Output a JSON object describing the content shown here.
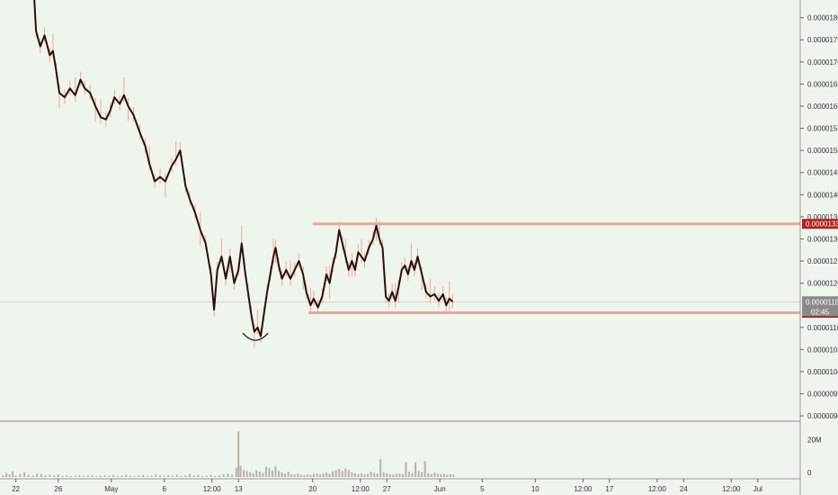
{
  "colors": {
    "background": "#eef5ec",
    "price_line": "#2b0f0f",
    "wick": "#e9a9a0",
    "level_line": "#e4a8a0",
    "level_tag": "#b0221f",
    "current_tag": "#8a8a8a",
    "volume_bar": "#b9b0aa",
    "axis_text": "#333333"
  },
  "chart_data": {
    "type": "line",
    "y_axis": {
      "ticks": [
        "0.00001800",
        "0.00001750",
        "0.00001700",
        "0.00001650",
        "0.00001600",
        "0.00001550",
        "0.00001500",
        "0.00001450",
        "0.00001400",
        "0.00001350",
        "0.00001300",
        "0.00001250",
        "0.00001200",
        "0.00001100",
        "0.00001050",
        "0.00001000",
        "0.00000950",
        "0.00000900"
      ],
      "range": [
        8.9e-06,
        1.84e-05
      ]
    },
    "x_axis": {
      "ticks": [
        {
          "label": "22",
          "day": 0
        },
        {
          "label": "26",
          "day": 4
        },
        {
          "label": "May",
          "day": 9
        },
        {
          "label": "6",
          "day": 14
        },
        {
          "label": "12:00",
          "day": 18.5
        },
        {
          "label": "13",
          "day": 21
        },
        {
          "label": "20",
          "day": 28
        },
        {
          "label": "12:00",
          "day": 32.5
        },
        {
          "label": "27",
          "day": 35
        },
        {
          "label": "Jun",
          "day": 40
        },
        {
          "label": "5",
          "day": 44
        },
        {
          "label": "10",
          "day": 49
        },
        {
          "label": "12:00",
          "day": 53.5
        },
        {
          "label": "17",
          "day": 56
        },
        {
          "label": "12:00",
          "day": 60.5
        },
        {
          "label": "24",
          "day": 63
        },
        {
          "label": "12:00",
          "day": 67.5
        },
        {
          "label": "Jul",
          "day": 70
        }
      ],
      "range": [
        -1.5,
        74
      ]
    },
    "series": [
      {
        "points": [
          [
            1.6,
            1.9e-05
          ],
          [
            1.9,
            1.77e-05
          ],
          [
            2.3,
            1.735e-05
          ],
          [
            2.7,
            1.76e-05
          ],
          [
            3.2,
            1.715e-05
          ],
          [
            3.5,
            1.725e-05
          ],
          [
            3.8,
            1.68e-05
          ],
          [
            4.1,
            1.63e-05
          ],
          [
            4.6,
            1.62e-05
          ],
          [
            5.1,
            1.64e-05
          ],
          [
            5.6,
            1.625e-05
          ],
          [
            6.1,
            1.66e-05
          ],
          [
            6.5,
            1.64e-05
          ],
          [
            7.0,
            1.63e-05
          ],
          [
            7.5,
            1.6e-05
          ],
          [
            8.0,
            1.575e-05
          ],
          [
            8.5,
            1.57e-05
          ],
          [
            8.9,
            1.59e-05
          ],
          [
            9.3,
            1.62e-05
          ],
          [
            9.8,
            1.605e-05
          ],
          [
            10.2,
            1.625e-05
          ],
          [
            10.6,
            1.6e-05
          ],
          [
            11.1,
            1.58e-05
          ],
          [
            11.7,
            1.54e-05
          ],
          [
            12.2,
            1.51e-05
          ],
          [
            12.6,
            1.47e-05
          ],
          [
            13.1,
            1.43e-05
          ],
          [
            13.6,
            1.44e-05
          ],
          [
            14.1,
            1.43e-05
          ],
          [
            14.7,
            1.465e-05
          ],
          [
            15.1,
            1.48e-05
          ],
          [
            15.5,
            1.5e-05
          ],
          [
            16.0,
            1.42e-05
          ],
          [
            16.4,
            1.39e-05
          ],
          [
            16.9,
            1.36e-05
          ],
          [
            17.4,
            1.32e-05
          ],
          [
            17.9,
            1.29e-05
          ],
          [
            18.4,
            1.22e-05
          ],
          [
            18.7,
            1.14e-05
          ],
          [
            19.0,
            1.23e-05
          ],
          [
            19.4,
            1.26e-05
          ],
          [
            19.8,
            1.21e-05
          ],
          [
            20.2,
            1.26e-05
          ],
          [
            20.6,
            1.2e-05
          ],
          [
            21.0,
            1.23e-05
          ],
          [
            21.3,
            1.29e-05
          ],
          [
            21.6,
            1.23e-05
          ],
          [
            21.9,
            1.18e-05
          ],
          [
            22.2,
            1.13e-05
          ],
          [
            22.5,
            1.09e-05
          ],
          [
            22.8,
            1.1e-05
          ],
          [
            23.1,
            1.08e-05
          ],
          [
            23.4,
            1.13e-05
          ],
          [
            23.7,
            1.18e-05
          ],
          [
            24.0,
            1.22e-05
          ],
          [
            24.3,
            1.26e-05
          ],
          [
            24.5,
            1.28e-05
          ],
          [
            24.8,
            1.24e-05
          ],
          [
            25.1,
            1.21e-05
          ],
          [
            25.5,
            1.23e-05
          ],
          [
            25.9,
            1.21e-05
          ],
          [
            26.3,
            1.23e-05
          ],
          [
            26.7,
            1.25e-05
          ],
          [
            27.1,
            1.22e-05
          ],
          [
            27.4,
            1.18e-05
          ],
          [
            27.8,
            1.15e-05
          ],
          [
            28.1,
            1.165e-05
          ],
          [
            28.5,
            1.145e-05
          ],
          [
            28.9,
            1.17e-05
          ],
          [
            29.3,
            1.22e-05
          ],
          [
            29.6,
            1.2e-05
          ],
          [
            29.9,
            1.24e-05
          ],
          [
            30.2,
            1.27e-05
          ],
          [
            30.5,
            1.32e-05
          ],
          [
            30.8,
            1.29e-05
          ],
          [
            31.1,
            1.26e-05
          ],
          [
            31.4,
            1.23e-05
          ],
          [
            31.7,
            1.25e-05
          ],
          [
            32.0,
            1.23e-05
          ],
          [
            32.3,
            1.27e-05
          ],
          [
            32.6,
            1.26e-05
          ],
          [
            32.9,
            1.25e-05
          ],
          [
            33.3,
            1.28e-05
          ],
          [
            33.7,
            1.3e-05
          ],
          [
            34.0,
            1.33e-05
          ],
          [
            34.3,
            1.3e-05
          ],
          [
            34.6,
            1.28e-05
          ],
          [
            34.9,
            1.17e-05
          ],
          [
            35.2,
            1.16e-05
          ],
          [
            35.5,
            1.18e-05
          ],
          [
            35.8,
            1.16e-05
          ],
          [
            36.1,
            1.19e-05
          ],
          [
            36.4,
            1.23e-05
          ],
          [
            36.7,
            1.24e-05
          ],
          [
            37.0,
            1.22e-05
          ],
          [
            37.3,
            1.25e-05
          ],
          [
            37.6,
            1.23e-05
          ],
          [
            37.9,
            1.26e-05
          ],
          [
            38.3,
            1.22e-05
          ],
          [
            38.7,
            1.18e-05
          ],
          [
            39.1,
            1.17e-05
          ],
          [
            39.5,
            1.175e-05
          ],
          [
            39.9,
            1.16e-05
          ],
          [
            40.3,
            1.175e-05
          ],
          [
            40.6,
            1.15e-05
          ],
          [
            40.9,
            1.165e-05
          ],
          [
            41.2,
            1.158e-05
          ]
        ]
      }
    ],
    "volume": {
      "ylabel_tick": "20M",
      "ylabel_zero": "0",
      "range": [
        0,
        28000000
      ],
      "bars": [
        [
          -1.2,
          900000
        ],
        [
          -0.9,
          2200000
        ],
        [
          -0.6,
          1400000
        ],
        [
          -0.3,
          3000000
        ],
        [
          0.0,
          800000
        ],
        [
          0.4,
          1500000
        ],
        [
          0.8,
          2500000
        ],
        [
          1.2,
          1200000
        ],
        [
          1.6,
          900000
        ],
        [
          2.0,
          1800000
        ],
        [
          2.4,
          1600000
        ],
        [
          2.8,
          1000000
        ],
        [
          3.2,
          1200000
        ],
        [
          3.6,
          900000
        ],
        [
          4.0,
          1500000
        ],
        [
          4.4,
          600000
        ],
        [
          4.8,
          800000
        ],
        [
          5.2,
          500000
        ],
        [
          5.6,
          700000
        ],
        [
          6.0,
          900000
        ],
        [
          6.4,
          600000
        ],
        [
          6.8,
          700000
        ],
        [
          7.2,
          800000
        ],
        [
          7.6,
          500000
        ],
        [
          8.0,
          700000
        ],
        [
          8.4,
          900000
        ],
        [
          8.8,
          800000
        ],
        [
          9.2,
          1100000
        ],
        [
          9.6,
          600000
        ],
        [
          10.0,
          900000
        ],
        [
          10.4,
          1200000
        ],
        [
          10.8,
          700000
        ],
        [
          11.2,
          500000
        ],
        [
          11.6,
          800000
        ],
        [
          12.0,
          1000000
        ],
        [
          12.4,
          600000
        ],
        [
          12.8,
          700000
        ],
        [
          13.2,
          1300000
        ],
        [
          13.6,
          800000
        ],
        [
          14.0,
          600000
        ],
        [
          14.4,
          900000
        ],
        [
          14.8,
          700000
        ],
        [
          15.2,
          1200000
        ],
        [
          15.6,
          600000
        ],
        [
          16.0,
          800000
        ],
        [
          16.4,
          1500000
        ],
        [
          16.8,
          900000
        ],
        [
          17.2,
          1100000
        ],
        [
          17.6,
          500000
        ],
        [
          18.0,
          700000
        ],
        [
          18.4,
          1200000
        ],
        [
          18.8,
          600000
        ],
        [
          19.2,
          1000000
        ],
        [
          19.6,
          1400000
        ],
        [
          20.0,
          1800000
        ],
        [
          20.4,
          1200000
        ],
        [
          20.8,
          5000000
        ],
        [
          21.0,
          24500000
        ],
        [
          21.2,
          6000000
        ],
        [
          21.5,
          3800000
        ],
        [
          21.8,
          3200000
        ],
        [
          22.1,
          2500000
        ],
        [
          22.4,
          2000000
        ],
        [
          22.7,
          3600000
        ],
        [
          23.0,
          2800000
        ],
        [
          23.3,
          2200000
        ],
        [
          23.6,
          5500000
        ],
        [
          23.9,
          4800000
        ],
        [
          24.2,
          3600000
        ],
        [
          24.5,
          5800000
        ],
        [
          24.8,
          3200000
        ],
        [
          25.1,
          2400000
        ],
        [
          25.4,
          1800000
        ],
        [
          25.7,
          2800000
        ],
        [
          26.0,
          1600000
        ],
        [
          26.3,
          1400000
        ],
        [
          26.6,
          1800000
        ],
        [
          26.9,
          1200000
        ],
        [
          27.2,
          1000000
        ],
        [
          27.5,
          1400000
        ],
        [
          27.8,
          1200000
        ],
        [
          28.1,
          1600000
        ],
        [
          28.4,
          1800000
        ],
        [
          28.7,
          1400000
        ],
        [
          29.0,
          2000000
        ],
        [
          29.3,
          2400000
        ],
        [
          29.6,
          1800000
        ],
        [
          29.9,
          3000000
        ],
        [
          30.2,
          3600000
        ],
        [
          30.5,
          4200000
        ],
        [
          30.8,
          3200000
        ],
        [
          31.1,
          4600000
        ],
        [
          31.4,
          3800000
        ],
        [
          31.7,
          2600000
        ],
        [
          32.0,
          2000000
        ],
        [
          32.3,
          1600000
        ],
        [
          32.6,
          1900000
        ],
        [
          32.9,
          1400000
        ],
        [
          33.2,
          1700000
        ],
        [
          33.5,
          2800000
        ],
        [
          33.8,
          2200000
        ],
        [
          34.1,
          1900000
        ],
        [
          34.4,
          9500000
        ],
        [
          34.7,
          2600000
        ],
        [
          35.0,
          2000000
        ],
        [
          35.3,
          1500000
        ],
        [
          35.6,
          1300000
        ],
        [
          35.9,
          1700000
        ],
        [
          36.2,
          1800000
        ],
        [
          36.5,
          1500000
        ],
        [
          36.8,
          8000000
        ],
        [
          37.1,
          2800000
        ],
        [
          37.4,
          2200000
        ],
        [
          37.7,
          7800000
        ],
        [
          38.0,
          3200000
        ],
        [
          38.3,
          2600000
        ],
        [
          38.6,
          8500000
        ],
        [
          38.9,
          2000000
        ],
        [
          39.2,
          1600000
        ],
        [
          39.5,
          2400000
        ],
        [
          39.8,
          1800000
        ],
        [
          40.1,
          1500000
        ],
        [
          40.4,
          1700000
        ],
        [
          40.7,
          1200000
        ],
        [
          41.0,
          1500000
        ],
        [
          41.3,
          1300000
        ]
      ]
    },
    "annotations": {
      "resistance": {
        "value": 1.334e-05,
        "label": "0.00001334",
        "x_start": 28.0
      },
      "support": {
        "value": 1.133e-05,
        "label": "0.00001133",
        "x_start": 27.6
      },
      "current": {
        "value": 1.158e-05,
        "label": "0.00001158",
        "countdown": "02:45"
      },
      "bottom_arc": {
        "x_center": 22.6,
        "half_width": 1.2,
        "value": 1.075e-05
      }
    }
  }
}
